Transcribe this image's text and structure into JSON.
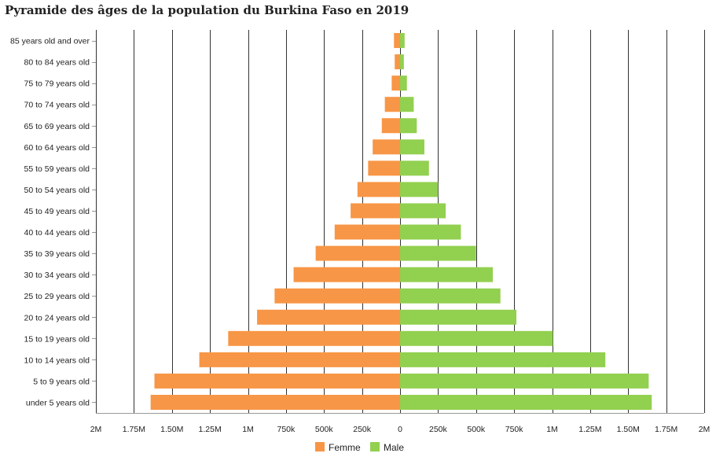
{
  "title": "Pyramide des âges de la population du Burkina Faso en 2019",
  "colors": {
    "female": "#F79646",
    "male": "#92D050",
    "grid": "#333333",
    "axis": "#999999"
  },
  "chart_data": {
    "type": "bar",
    "orientation": "horizontal-pyramid",
    "title": "Pyramide des âges de la population du Burkina Faso en 2019",
    "categories": [
      "85 years old and over",
      "80 to 84 years old",
      "75 to 79 years old",
      "70 to 74 years old",
      "65 to 69 years old",
      "60 to 64 years old",
      "55 to 59 years old",
      "50 to 54 years old",
      "45 to 49 years old",
      "40 to 44 years old",
      "35 to 39 years old",
      "30 to 34 years old",
      "25 to 29 years old",
      "20 to 24 years old",
      "15 to 19 years old",
      "10 to 14 years old",
      "5 to 9 years old",
      "under 5 years old"
    ],
    "series": [
      {
        "name": "Femme",
        "side": "left",
        "values": [
          40000,
          35000,
          55000,
          100000,
          120000,
          180000,
          210000,
          280000,
          325000,
          430000,
          555000,
          700000,
          825000,
          940000,
          1130000,
          1320000,
          1615000,
          1640000
        ]
      },
      {
        "name": "Male",
        "side": "right",
        "values": [
          30000,
          25000,
          45000,
          90000,
          110000,
          160000,
          190000,
          250000,
          300000,
          400000,
          500000,
          610000,
          660000,
          765000,
          1005000,
          1350000,
          1635000,
          1655000
        ]
      }
    ],
    "xlim": [
      -2000000,
      2000000
    ],
    "x_ticks": [
      -2000000,
      -1750000,
      -1500000,
      -1250000,
      -1000000,
      -750000,
      -500000,
      -250000,
      0,
      250000,
      500000,
      750000,
      1000000,
      1250000,
      1500000,
      1750000,
      2000000
    ],
    "x_tick_labels": [
      "2M",
      "1.75M",
      "1.50M",
      "1.25M",
      "1M",
      "750k",
      "500k",
      "250k",
      "0",
      "250k",
      "500k",
      "750k",
      "1M",
      "1.25M",
      "1.50M",
      "1.75M",
      "2M"
    ],
    "legend": [
      "Femme",
      "Male"
    ],
    "legend_position": "bottom-center",
    "grid": true
  }
}
